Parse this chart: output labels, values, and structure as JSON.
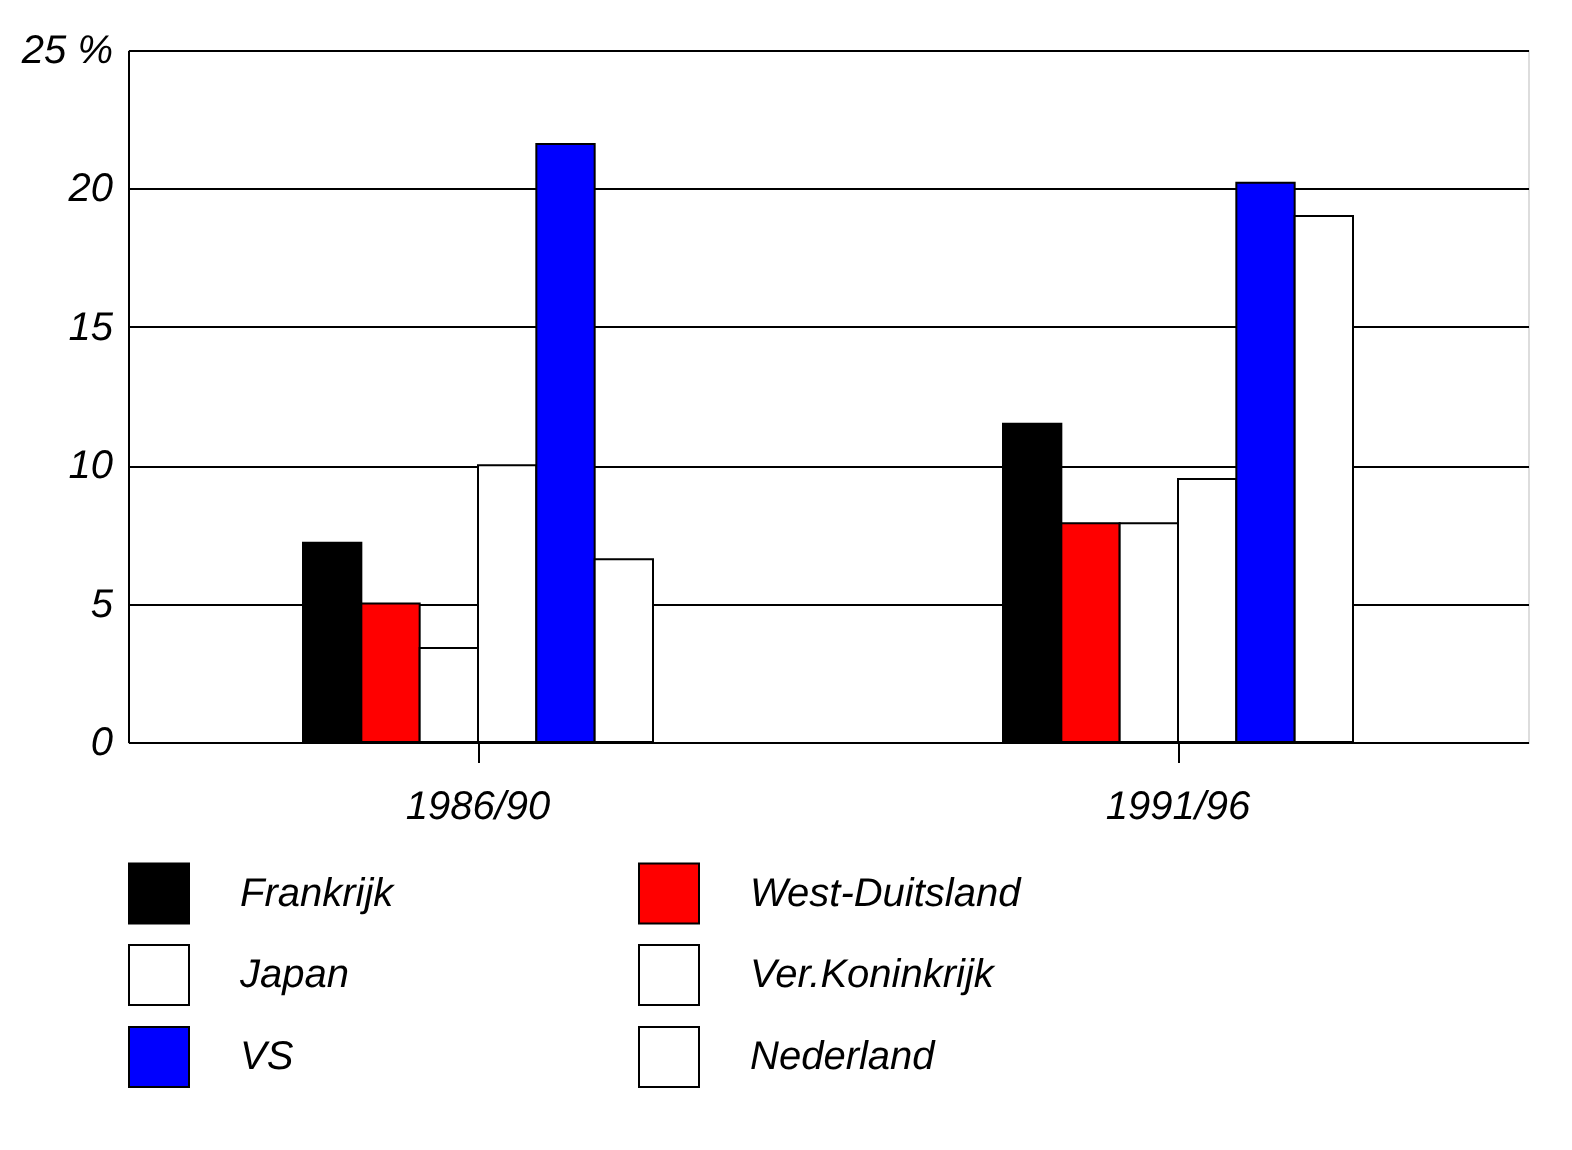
{
  "chart_data": {
    "type": "bar",
    "categories": [
      "1986/90",
      "1991/96"
    ],
    "series": [
      {
        "name": "Frankrijk",
        "color": "#000000",
        "values": [
          7.2,
          11.5
        ]
      },
      {
        "name": "West-Duitsland",
        "color": "#ff0000",
        "values": [
          5.0,
          7.9
        ]
      },
      {
        "name": "Japan",
        "color": "#ffffff",
        "values": [
          3.4,
          7.9
        ]
      },
      {
        "name": "Ver.Koninkrijk",
        "color": "#ffffff",
        "values": [
          10.0,
          9.5
        ]
      },
      {
        "name": "VS",
        "color": "#0000ff",
        "values": [
          21.6,
          20.2
        ]
      },
      {
        "name": "Nederland",
        "color": "#ffffff",
        "values": [
          6.6,
          19.0
        ]
      }
    ],
    "ylim": [
      0,
      25
    ],
    "yticks": [
      0,
      5,
      10,
      15,
      20,
      {
        "value": 25,
        "label": "25 %"
      }
    ],
    "grid": "y",
    "legend": "bottom"
  }
}
